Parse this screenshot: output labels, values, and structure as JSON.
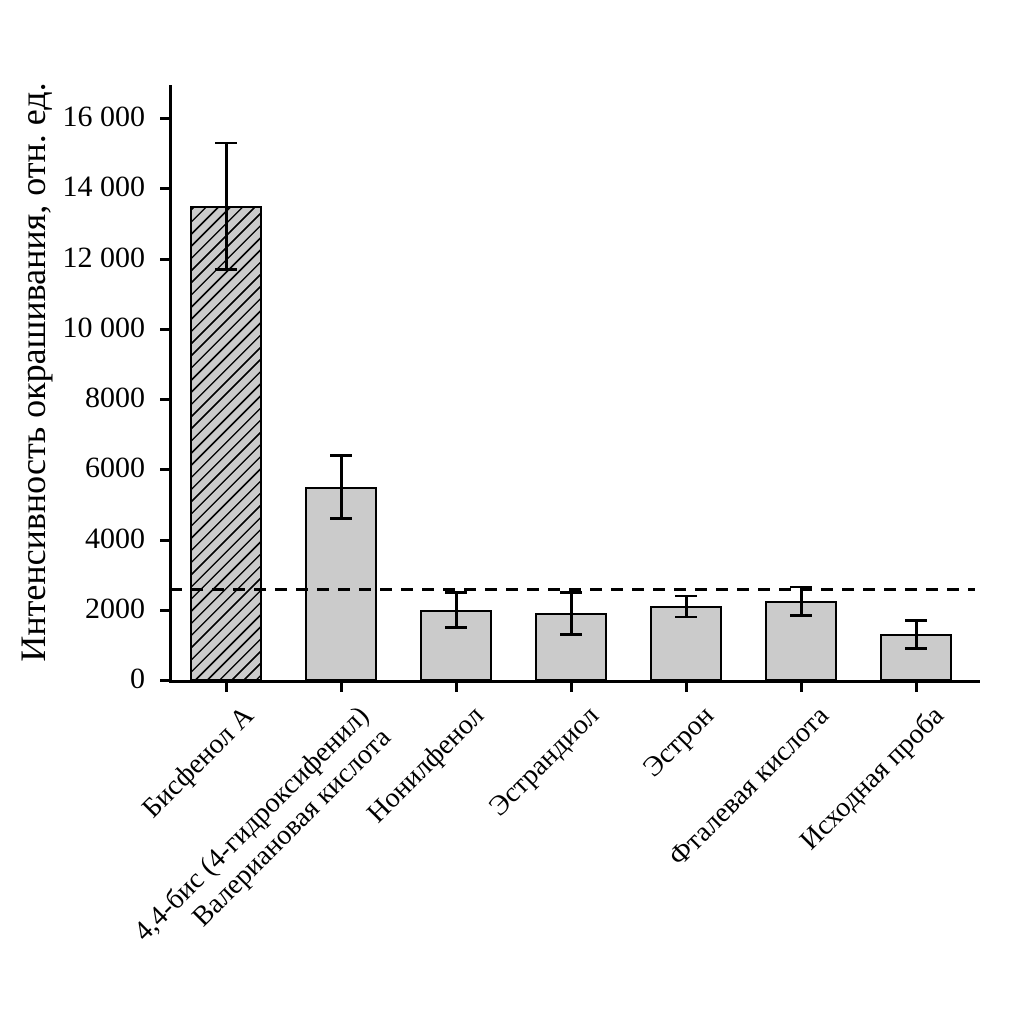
{
  "chart_data": {
    "type": "bar",
    "title": "",
    "xlabel": "",
    "ylabel": "Интенсивность окрашивания, отн. ед.",
    "categories": [
      "Бисфенол А",
      "4,4-бис (4-гидроксифенил)\nВалериановая кислота",
      "Нонилфенол",
      "Эстрандиол",
      "Эстрон",
      "Фталевая кислота",
      "Исходная проба"
    ],
    "values": [
      13500,
      5500,
      2000,
      1900,
      2100,
      2250,
      1300
    ],
    "errors": [
      1800,
      900,
      500,
      600,
      300,
      400,
      400
    ],
    "threshold_line": 2600,
    "threshold_style": "dashed",
    "ylim": [
      0,
      16600
    ],
    "yticks": {
      "values": [
        0,
        2000,
        4000,
        6000,
        8000,
        10000,
        12000,
        14000,
        16000
      ],
      "labels": [
        "0",
        "2000",
        "4000",
        "6000",
        "8000",
        "10 000",
        "12 000",
        "14 000",
        "16 000"
      ]
    },
    "hatched_bar_index": 0,
    "grid": "off",
    "legend": "none",
    "colors": {
      "ink": "#000000",
      "bar_fill": "#cbcbcb",
      "background": "#ffffff"
    }
  }
}
